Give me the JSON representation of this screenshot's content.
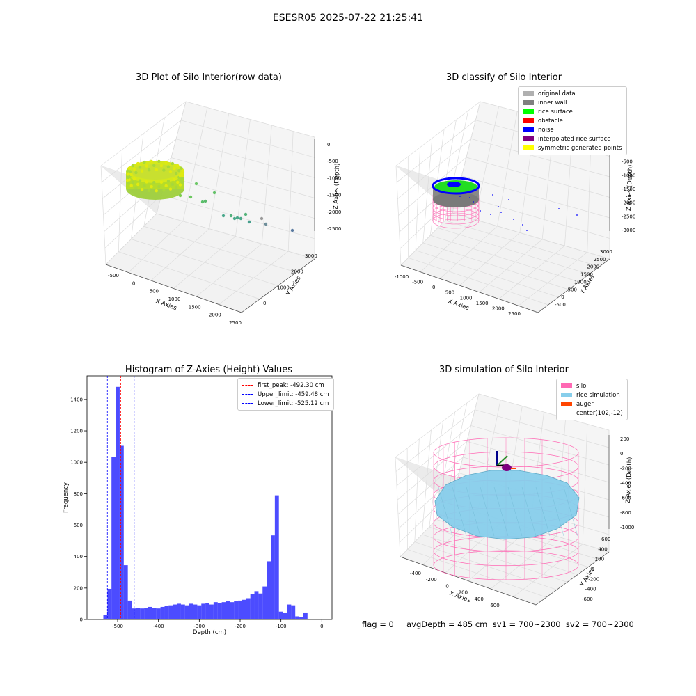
{
  "suptitle": "ESESR05 2025-07-22 21:25:41",
  "status_line": "flag = 0     avgDepth = 485 cm  sv1 = 700~2300  sv2 = 700~2300",
  "chart_data": [
    {
      "type": "scatter",
      "title": "3D Plot of Silo Interior(row data)",
      "xlabel": "X Axies",
      "ylabel": "Y Axies",
      "zlabel": "Z Axies (Depth)",
      "xticks": [
        "-500",
        "0",
        "500",
        "1000",
        "1500",
        "2000",
        "2500"
      ],
      "yticks": [
        "0",
        "1000",
        "2000",
        "3000"
      ],
      "zticks": [
        "0",
        "-500",
        "-1000",
        "-1500",
        "-2000",
        "-2500"
      ]
    },
    {
      "type": "scatter",
      "title": "3D classify of Silo Interior",
      "xlabel": "X Axies",
      "ylabel": "Y Axies",
      "zlabel": "Z Axies (Depth)",
      "xticks": [
        "-1000",
        "-500",
        "0",
        "500",
        "1000",
        "1500",
        "2000",
        "2500"
      ],
      "yticks": [
        "-500",
        "0",
        "500",
        "1000",
        "1500",
        "2000",
        "2500",
        "3000"
      ],
      "zticks": [
        "0",
        "-500",
        "-1000",
        "-1500",
        "-2000",
        "-2500",
        "-3000"
      ],
      "legend": [
        {
          "label": "original data",
          "color": "#b0b0b0"
        },
        {
          "label": "inner wall",
          "color": "#808080"
        },
        {
          "label": "rice surface",
          "color": "#00ff00"
        },
        {
          "label": "obstacle",
          "color": "#ff0000"
        },
        {
          "label": "noise",
          "color": "#0000ff"
        },
        {
          "label": "interpolated rice surface",
          "color": "#800080"
        },
        {
          "label": "symmetric generated points",
          "color": "#ffff00"
        }
      ]
    },
    {
      "type": "bar",
      "title": "Histogram of Z-Axies (Height) Values",
      "xlabel": "Depth (cm)",
      "ylabel": "Frequency",
      "xlim": [
        -575,
        25
      ],
      "ylim": [
        0,
        1550
      ],
      "xticks": [
        -500,
        -400,
        -300,
        -200,
        -100,
        0
      ],
      "yticks": [
        0,
        200,
        400,
        600,
        800,
        1000,
        1200,
        1400
      ],
      "bin_width": 10,
      "bin_starts": [
        -535,
        -525,
        -515,
        -505,
        -495,
        -485,
        -475,
        -465,
        -455,
        -445,
        -435,
        -425,
        -415,
        -405,
        -395,
        -385,
        -375,
        -365,
        -355,
        -345,
        -335,
        -325,
        -315,
        -305,
        -295,
        -285,
        -275,
        -265,
        -255,
        -245,
        -235,
        -225,
        -215,
        -205,
        -195,
        -185,
        -175,
        -165,
        -155,
        -145,
        -135,
        -125,
        -115,
        -105,
        -95,
        -85,
        -75,
        -65,
        -55,
        -45,
        -35,
        -25,
        -15,
        -5
      ],
      "values": [
        30,
        195,
        1035,
        1480,
        1105,
        345,
        120,
        70,
        75,
        70,
        75,
        80,
        75,
        70,
        80,
        85,
        90,
        95,
        100,
        95,
        90,
        100,
        95,
        90,
        100,
        105,
        95,
        110,
        105,
        110,
        115,
        110,
        115,
        120,
        125,
        135,
        160,
        180,
        165,
        210,
        370,
        535,
        790,
        50,
        40,
        95,
        90,
        20,
        15,
        40,
        0,
        0,
        0,
        0
      ],
      "color": "#0000ff",
      "vlines": [
        {
          "label": "first_peak: -492.30 cm",
          "x": -492.3,
          "color": "#ff0000"
        },
        {
          "label": "Upper_limit: -459.48 cm",
          "x": -459.48,
          "color": "#0000ff"
        },
        {
          "label": "Lower_limit: -525.12 cm",
          "x": -525.12,
          "color": "#0000ff"
        }
      ]
    },
    {
      "type": "scatter",
      "title": "3D simulation of Silo Interior",
      "xlabel": "X Axies",
      "ylabel": "Y Axies",
      "zlabel": "Z Axies (Depth)",
      "xticks": [
        "-400",
        "-200",
        "0",
        "200",
        "400",
        "600"
      ],
      "yticks": [
        "-600",
        "-400",
        "-200",
        "0",
        "200",
        "400",
        "600"
      ],
      "zticks": [
        "200",
        "0",
        "-200",
        "-400",
        "-600",
        "-800",
        "-1000"
      ],
      "legend": [
        {
          "label": "silo",
          "color": "#ff69b4"
        },
        {
          "label": "rice simulation",
          "color": "#87ceeb"
        },
        {
          "label": "auger",
          "color": "#ff4500"
        },
        {
          "label": "center(102,-12)",
          "color": "#800080"
        }
      ]
    }
  ]
}
